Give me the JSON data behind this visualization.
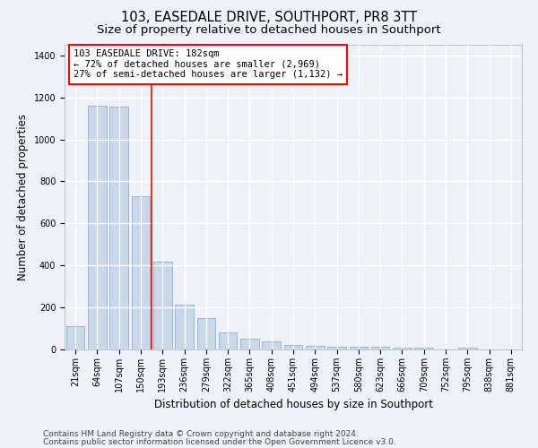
{
  "title": "103, EASEDALE DRIVE, SOUTHPORT, PR8 3TT",
  "subtitle": "Size of property relative to detached houses in Southport",
  "xlabel": "Distribution of detached houses by size in Southport",
  "ylabel": "Number of detached properties",
  "categories": [
    "21sqm",
    "64sqm",
    "107sqm",
    "150sqm",
    "193sqm",
    "236sqm",
    "279sqm",
    "322sqm",
    "365sqm",
    "408sqm",
    "451sqm",
    "494sqm",
    "537sqm",
    "580sqm",
    "623sqm",
    "666sqm",
    "709sqm",
    "752sqm",
    "795sqm",
    "838sqm",
    "881sqm"
  ],
  "values": [
    110,
    1160,
    1155,
    730,
    420,
    215,
    150,
    80,
    52,
    38,
    22,
    16,
    14,
    13,
    12,
    10,
    8,
    0,
    10,
    0,
    0
  ],
  "bar_color": "#c8d8ea",
  "bar_edge_color": "#8ab0cc",
  "red_line_index": 3.5,
  "annotation_line1": "103 EASEDALE DRIVE: 182sqm",
  "annotation_line2": "← 72% of detached houses are smaller (2,969)",
  "annotation_line3": "27% of semi-detached houses are larger (1,132) →",
  "annotation_box_color": "white",
  "annotation_box_edge_color": "red",
  "ylim": [
    0,
    1450
  ],
  "yticks": [
    0,
    200,
    400,
    600,
    800,
    1000,
    1200,
    1400
  ],
  "footnote1": "Contains HM Land Registry data © Crown copyright and database right 2024.",
  "footnote2": "Contains public sector information licensed under the Open Government Licence v3.0.",
  "background_color": "#eef2f8",
  "grid_color": "#d0d8e8",
  "title_fontsize": 10.5,
  "subtitle_fontsize": 9.5,
  "ylabel_fontsize": 8.5,
  "xlabel_fontsize": 8.5,
  "tick_fontsize": 7,
  "annotation_fontsize": 7.5,
  "footnote_fontsize": 6.5
}
